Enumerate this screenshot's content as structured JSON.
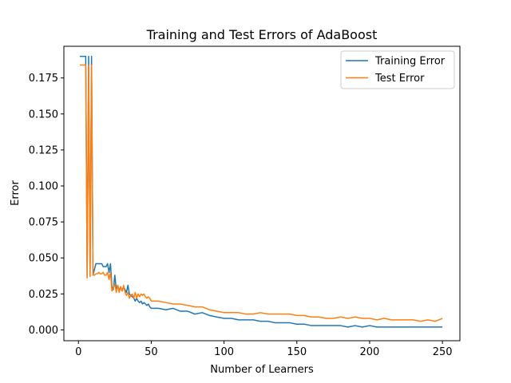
{
  "chart_data": {
    "type": "line",
    "title": "Training and Test Errors of AdaBoost",
    "xlabel": "Number of Learners",
    "ylabel": "Error",
    "xlim": [
      -10,
      262
    ],
    "ylim": [
      -0.0075,
      0.197
    ],
    "xticks": [
      0,
      50,
      100,
      150,
      200,
      250
    ],
    "xtick_labels": [
      "0",
      "50",
      "100",
      "150",
      "200",
      "250"
    ],
    "yticks": [
      0.0,
      0.025,
      0.05,
      0.075,
      0.1,
      0.125,
      0.15,
      0.175
    ],
    "ytick_labels": [
      "0.000",
      "0.025",
      "0.050",
      "0.075",
      "0.100",
      "0.125",
      "0.150",
      "0.175"
    ],
    "grid": false,
    "legend_position": "top-right",
    "series": [
      {
        "name": "Training Error",
        "color": "#1f77b4",
        "x": [
          1,
          2,
          3,
          4,
          5,
          6,
          7,
          8,
          9,
          10,
          11,
          12,
          13,
          14,
          15,
          16,
          17,
          18,
          19,
          20,
          21,
          22,
          23,
          24,
          25,
          26,
          27,
          28,
          29,
          30,
          31,
          32,
          33,
          34,
          35,
          36,
          37,
          38,
          39,
          40,
          41,
          42,
          43,
          44,
          45,
          46,
          47,
          48,
          49,
          50,
          55,
          60,
          65,
          70,
          75,
          80,
          85,
          90,
          95,
          100,
          105,
          110,
          115,
          120,
          125,
          130,
          135,
          140,
          145,
          150,
          155,
          160,
          165,
          170,
          175,
          180,
          185,
          190,
          195,
          200,
          205,
          210,
          215,
          220,
          225,
          230,
          235,
          240,
          245,
          250
        ],
        "y": [
          0.19,
          0.19,
          0.19,
          0.19,
          0.19,
          0.037,
          0.19,
          0.038,
          0.19,
          0.038,
          0.042,
          0.046,
          0.046,
          0.046,
          0.046,
          0.046,
          0.044,
          0.044,
          0.044,
          0.046,
          0.04,
          0.046,
          0.03,
          0.028,
          0.038,
          0.028,
          0.031,
          0.027,
          0.03,
          0.027,
          0.03,
          0.028,
          0.026,
          0.031,
          0.025,
          0.024,
          0.023,
          0.022,
          0.02,
          0.022,
          0.02,
          0.019,
          0.02,
          0.018,
          0.019,
          0.018,
          0.017,
          0.018,
          0.016,
          0.015,
          0.015,
          0.014,
          0.015,
          0.013,
          0.013,
          0.011,
          0.012,
          0.01,
          0.009,
          0.008,
          0.008,
          0.007,
          0.007,
          0.007,
          0.006,
          0.006,
          0.005,
          0.005,
          0.005,
          0.004,
          0.004,
          0.003,
          0.003,
          0.003,
          0.003,
          0.003,
          0.002,
          0.003,
          0.002,
          0.003,
          0.002,
          0.002,
          0.002,
          0.002,
          0.002,
          0.002,
          0.002,
          0.002,
          0.002,
          0.002
        ]
      },
      {
        "name": "Test Error",
        "color": "#ff7f0e",
        "x": [
          1,
          2,
          3,
          4,
          5,
          6,
          7,
          8,
          9,
          10,
          11,
          12,
          13,
          14,
          15,
          16,
          17,
          18,
          19,
          20,
          21,
          22,
          23,
          24,
          25,
          26,
          27,
          28,
          29,
          30,
          31,
          32,
          33,
          34,
          35,
          36,
          37,
          38,
          39,
          40,
          41,
          42,
          43,
          44,
          45,
          46,
          47,
          48,
          49,
          50,
          55,
          60,
          65,
          70,
          75,
          80,
          85,
          90,
          95,
          100,
          105,
          110,
          115,
          120,
          125,
          130,
          135,
          140,
          145,
          150,
          155,
          160,
          165,
          170,
          175,
          180,
          185,
          190,
          195,
          200,
          205,
          210,
          215,
          220,
          225,
          230,
          235,
          240,
          245,
          250
        ],
        "y": [
          0.184,
          0.184,
          0.184,
          0.184,
          0.184,
          0.036,
          0.184,
          0.037,
          0.184,
          0.038,
          0.038,
          0.039,
          0.039,
          0.04,
          0.039,
          0.039,
          0.04,
          0.038,
          0.038,
          0.04,
          0.035,
          0.04,
          0.027,
          0.029,
          0.032,
          0.026,
          0.031,
          0.026,
          0.03,
          0.027,
          0.031,
          0.026,
          0.024,
          0.026,
          0.022,
          0.024,
          0.025,
          0.022,
          0.026,
          0.022,
          0.025,
          0.023,
          0.025,
          0.024,
          0.025,
          0.023,
          0.022,
          0.023,
          0.022,
          0.02,
          0.02,
          0.019,
          0.018,
          0.018,
          0.017,
          0.016,
          0.016,
          0.014,
          0.013,
          0.012,
          0.012,
          0.012,
          0.011,
          0.011,
          0.012,
          0.011,
          0.011,
          0.011,
          0.011,
          0.01,
          0.01,
          0.009,
          0.009,
          0.008,
          0.008,
          0.009,
          0.008,
          0.009,
          0.008,
          0.008,
          0.007,
          0.008,
          0.007,
          0.007,
          0.007,
          0.007,
          0.006,
          0.007,
          0.006,
          0.008
        ]
      }
    ]
  }
}
